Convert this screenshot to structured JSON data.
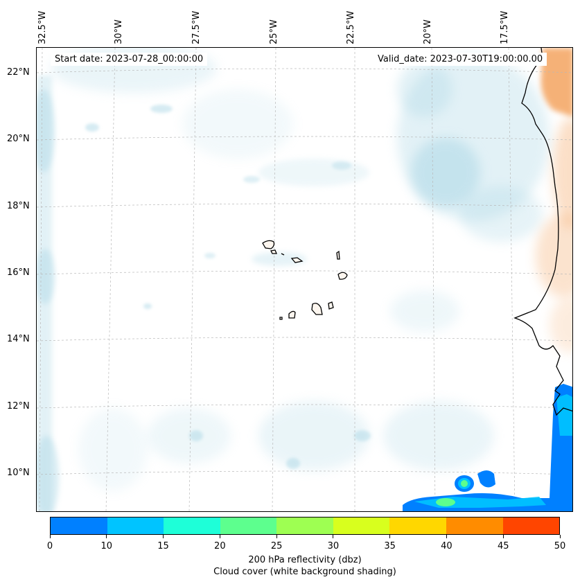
{
  "map": {
    "start_date": "Start date: 2023-07-28_00:00:00",
    "valid_date": "Valid_date: 2023-07-30T19:00:00.00",
    "lon_labels": [
      "32.5°W",
      "30°W",
      "27.5°W",
      "25°W",
      "22.5°W",
      "20°W",
      "17.5°W"
    ],
    "lat_labels": [
      "22°N",
      "20°N",
      "18°N",
      "16°N",
      "14°N",
      "12°N",
      "10°N"
    ]
  },
  "colorbar": {
    "ticks": [
      "0",
      "10",
      "15",
      "20",
      "25",
      "30",
      "35",
      "40",
      "45",
      "50"
    ],
    "colors": [
      "#0080ff",
      "#00c4ff",
      "#1effd8",
      "#5dff8e",
      "#9eff52",
      "#d8ff1e",
      "#ffd700",
      "#ff8c00",
      "#ff4500"
    ],
    "label_line1": "200 hPa reflectivity (dbz)",
    "label_line2": "Cloud cover (white background shading)"
  },
  "colors": {
    "cloud": "#add8e6",
    "land_heat": "#f4a460",
    "coast": "#000000"
  }
}
